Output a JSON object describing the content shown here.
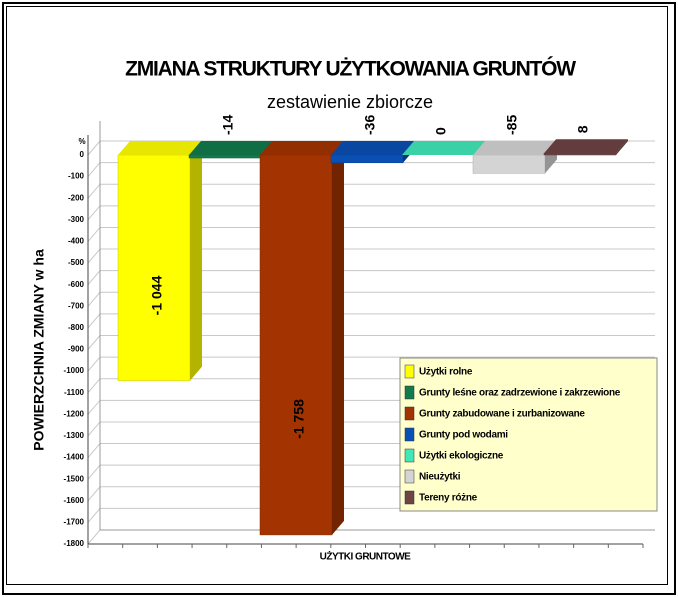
{
  "chart_data": {
    "type": "bar",
    "title": "ZMIANA STRUKTURY UŻYTKOWANIA GRUNTÓW",
    "subtitle": "zestawienie zbiorcze",
    "y_label": "POWIERZCHNIA ZMIANY w ha",
    "y_unit": "%",
    "x_label": "UŻYTKI GRUNTOWE",
    "categories": [
      "Użytki rolne",
      "Grunty leśne oraz zadrzewione i zakrzewione",
      "Grunty zabudowane i zurbanizowane",
      "Grunty pod wodami",
      "Użytki ekologiczne",
      "Nieużytki",
      "Tereny różne"
    ],
    "values": [
      -1044,
      -14,
      -1758,
      -36,
      0,
      -85,
      8
    ],
    "value_labels": [
      "-1 044",
      "-14",
      "-1 758",
      "-36",
      "0",
      "-85",
      "8"
    ],
    "colors": [
      "#ffff00",
      "#127a4c",
      "#a33300",
      "#0a4fb4",
      "#40e8b8",
      "#d4d4d4",
      "#6e4444"
    ],
    "ylim": [
      -1800,
      0
    ],
    "yticks": [
      0,
      -100,
      -200,
      -300,
      -400,
      -500,
      -600,
      -700,
      -800,
      -900,
      -1000,
      -1100,
      -1200,
      -1300,
      -1400,
      -1500,
      -1600,
      -1700,
      -1800
    ],
    "grid": true,
    "legend": "lower-right"
  }
}
